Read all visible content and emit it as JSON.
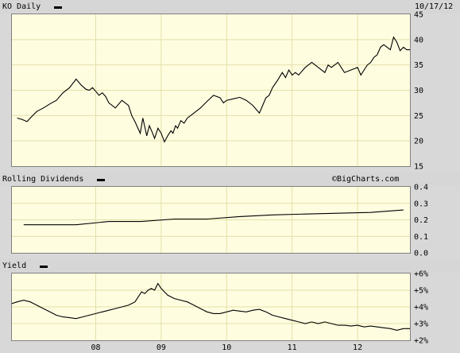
{
  "header": {
    "ticker_label": "KO Daily",
    "date": "10/17/12"
  },
  "watermark": "©BigCharts.com",
  "colors": {
    "plot_bg": "#fffde0",
    "grid": "#e3dfa8",
    "line": "#000000",
    "frame_bg": "#d8d8d8"
  },
  "chart_data": [
    {
      "type": "line",
      "title": "KO Daily",
      "series": [
        {
          "name": "KO Daily",
          "x": [
            2006.8,
            2006.88,
            2006.95,
            2007.0,
            2007.1,
            2007.2,
            2007.3,
            2007.4,
            2007.5,
            2007.6,
            2007.7,
            2007.78,
            2007.85,
            2007.9,
            2007.95,
            2008.0,
            2008.05,
            2008.1,
            2008.15,
            2008.2,
            2008.3,
            2008.4,
            2008.5,
            2008.55,
            2008.6,
            2008.68,
            2008.72,
            2008.78,
            2008.82,
            2008.86,
            2008.9,
            2008.95,
            2009.0,
            2009.05,
            2009.1,
            2009.15,
            2009.18,
            2009.22,
            2009.25,
            2009.3,
            2009.35,
            2009.4,
            2009.45,
            2009.5,
            2009.6,
            2009.7,
            2009.8,
            2009.9,
            2009.95,
            2010.0,
            2010.1,
            2010.2,
            2010.3,
            2010.4,
            2010.5,
            2010.55,
            2010.6,
            2010.65,
            2010.7,
            2010.78,
            2010.85,
            2010.9,
            2010.95,
            2011.0,
            2011.05,
            2011.1,
            2011.2,
            2011.3,
            2011.4,
            2011.5,
            2011.55,
            2011.6,
            2011.7,
            2011.8,
            2011.9,
            2012.0,
            2012.05,
            2012.1,
            2012.15,
            2012.2,
            2012.25,
            2012.3,
            2012.35,
            2012.4,
            2012.5,
            2012.55,
            2012.6,
            2012.65,
            2012.7,
            2012.75,
            2012.8
          ],
          "values": [
            24.5,
            24.2,
            23.8,
            24.5,
            25.8,
            26.5,
            27.3,
            28.0,
            29.5,
            30.5,
            32.2,
            31.0,
            30.2,
            30.0,
            30.5,
            29.8,
            29.0,
            29.5,
            28.8,
            27.5,
            26.5,
            28.0,
            27.0,
            25.0,
            23.8,
            21.5,
            24.5,
            21.0,
            23.0,
            21.8,
            20.5,
            22.5,
            21.5,
            19.8,
            21.0,
            22.0,
            21.5,
            23.0,
            22.5,
            24.0,
            23.5,
            24.5,
            25.0,
            25.5,
            26.5,
            27.8,
            29.0,
            28.5,
            27.5,
            28.0,
            28.3,
            28.6,
            28.0,
            27.0,
            25.5,
            27.0,
            28.5,
            29.0,
            30.5,
            32.0,
            33.5,
            32.5,
            34.0,
            33.0,
            33.5,
            33.0,
            34.5,
            35.5,
            34.5,
            33.5,
            35.0,
            34.5,
            35.5,
            33.5,
            34.0,
            34.5,
            33.0,
            34.0,
            35.0,
            35.5,
            36.5,
            37.0,
            38.5,
            39.0,
            38.0,
            40.5,
            39.5,
            37.8,
            38.5,
            38.0,
            38.0
          ]
        }
      ],
      "xlim": [
        2006.72,
        2012.8
      ],
      "ylim": [
        15,
        45
      ],
      "yticks": [
        "15",
        "20",
        "25",
        "30",
        "35",
        "40",
        "45"
      ],
      "grid": true
    },
    {
      "type": "line",
      "title": "Rolling Dividends",
      "series": [
        {
          "name": "Rolling Dividends",
          "x": [
            2006.9,
            2007.7,
            2007.7,
            2008.2,
            2008.2,
            2008.7,
            2008.7,
            2009.2,
            2009.2,
            2009.7,
            2009.7,
            2010.2,
            2010.2,
            2010.7,
            2010.7,
            2011.2,
            2011.2,
            2011.7,
            2011.7,
            2012.2,
            2012.2,
            2012.7
          ],
          "values": [
            0.17,
            0.17,
            0.17,
            0.19,
            0.19,
            0.19,
            0.19,
            0.205,
            0.205,
            0.205,
            0.205,
            0.22,
            0.22,
            0.23,
            0.23,
            0.235,
            0.235,
            0.24,
            0.24,
            0.245,
            0.245,
            0.26
          ]
        }
      ],
      "xlim": [
        2006.72,
        2012.8
      ],
      "ylim": [
        0.0,
        0.4
      ],
      "yticks": [
        "0.0",
        "0.1",
        "0.2",
        "0.3",
        "0.4"
      ],
      "grid": true
    },
    {
      "type": "line",
      "title": "Yield",
      "series": [
        {
          "name": "Yield",
          "x": [
            2006.72,
            2006.8,
            2006.9,
            2007.0,
            2007.1,
            2007.2,
            2007.3,
            2007.4,
            2007.5,
            2007.6,
            2007.7,
            2007.8,
            2007.9,
            2008.0,
            2008.1,
            2008.2,
            2008.3,
            2008.4,
            2008.5,
            2008.6,
            2008.65,
            2008.7,
            2008.75,
            2008.8,
            2008.85,
            2008.9,
            2008.95,
            2009.0,
            2009.05,
            2009.1,
            2009.2,
            2009.3,
            2009.4,
            2009.5,
            2009.6,
            2009.7,
            2009.8,
            2009.9,
            2010.0,
            2010.1,
            2010.2,
            2010.3,
            2010.4,
            2010.5,
            2010.6,
            2010.7,
            2010.8,
            2010.9,
            2011.0,
            2011.1,
            2011.2,
            2011.3,
            2011.4,
            2011.5,
            2011.6,
            2011.7,
            2011.8,
            2011.9,
            2012.0,
            2012.1,
            2012.2,
            2012.3,
            2012.4,
            2012.5,
            2012.6,
            2012.7,
            2012.8
          ],
          "values": [
            4.2,
            4.3,
            4.4,
            4.3,
            4.1,
            3.9,
            3.7,
            3.5,
            3.4,
            3.35,
            3.3,
            3.4,
            3.5,
            3.6,
            3.7,
            3.8,
            3.9,
            4.0,
            4.1,
            4.3,
            4.6,
            4.9,
            4.8,
            5.0,
            5.1,
            5.0,
            5.4,
            5.1,
            4.9,
            4.7,
            4.5,
            4.4,
            4.3,
            4.1,
            3.9,
            3.7,
            3.6,
            3.6,
            3.7,
            3.8,
            3.75,
            3.7,
            3.8,
            3.85,
            3.7,
            3.5,
            3.4,
            3.3,
            3.2,
            3.1,
            3.0,
            3.1,
            3.0,
            3.1,
            3.0,
            2.9,
            2.9,
            2.85,
            2.9,
            2.8,
            2.85,
            2.8,
            2.75,
            2.7,
            2.6,
            2.7,
            2.7
          ]
        }
      ],
      "xlim": [
        2006.72,
        2012.8
      ],
      "ylim": [
        2,
        6
      ],
      "yticks": [
        "+2%",
        "+3%",
        "+4%",
        "+5%",
        "+6%"
      ],
      "grid": true
    }
  ],
  "x_axis": {
    "tick_labels": [
      "08",
      "09",
      "10",
      "11",
      "12"
    ],
    "tick_values": [
      2008.0,
      2009.0,
      2010.0,
      2011.0,
      2012.0
    ]
  }
}
